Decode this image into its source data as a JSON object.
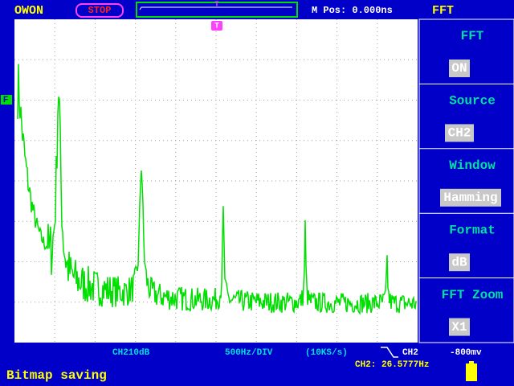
{
  "top_bar": {
    "brand": "OWON",
    "status": "STOP",
    "trigger_marker": "T",
    "m_pos": "M Pos: 0.000ns",
    "mode": "FFT"
  },
  "menu": [
    {
      "label": "FFT",
      "value": "ON"
    },
    {
      "label": "Source",
      "value": "CH2"
    },
    {
      "label": "Window",
      "value": "Hamming"
    },
    {
      "label": "Format",
      "value": "dB"
    },
    {
      "label": "FFT Zoom",
      "value": "X1"
    }
  ],
  "markers": {
    "trigger": "T",
    "level": "F"
  },
  "status_bar": {
    "scale": "CH210dB",
    "freq_div": "500Hz/DIV",
    "sample_rate": "(10KS/s)",
    "trigger_channel": "CH2",
    "trigger_level": "-800mv",
    "frequency": "CH2: 26.5777Hz",
    "message": "Bitmap saving"
  }
}
